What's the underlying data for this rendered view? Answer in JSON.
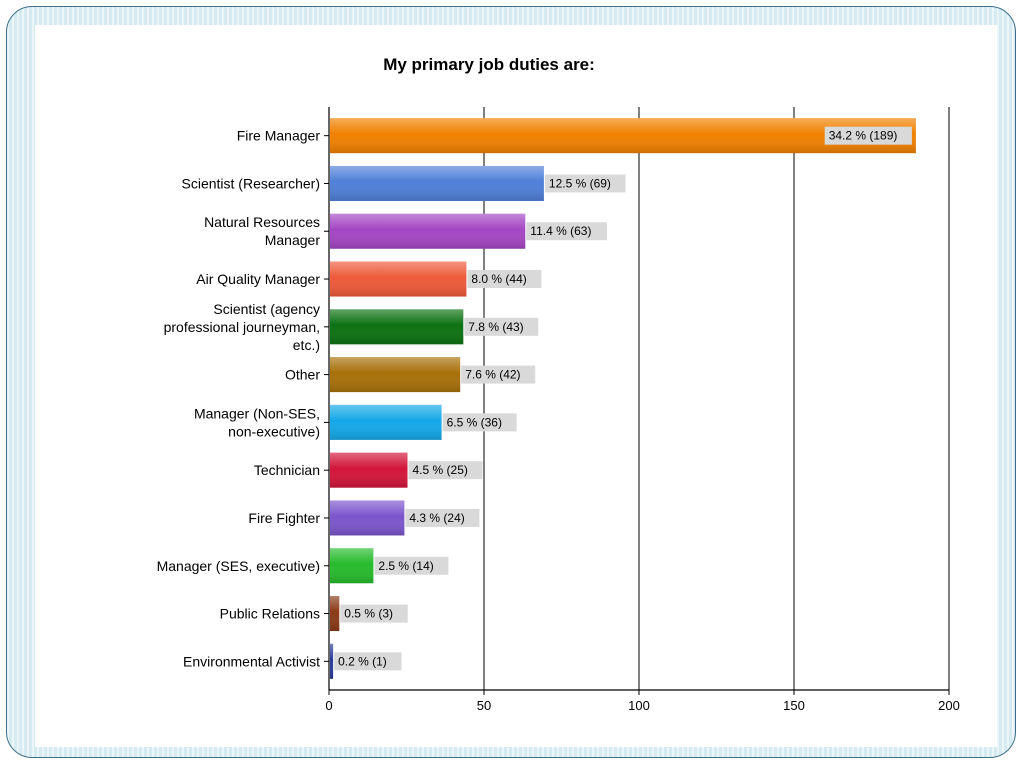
{
  "chart_data": {
    "type": "bar",
    "orientation": "horizontal",
    "title": "My primary job duties are:",
    "xlabel": "",
    "ylabel": "",
    "xlim": [
      0,
      200
    ],
    "xticks": [
      0,
      50,
      100,
      150,
      200
    ],
    "grid": true,
    "bars": [
      {
        "label": "Fire Manager",
        "value": 189,
        "data_label": "34.2 % (189)",
        "color": "#f08000"
      },
      {
        "label": "Scientist (Researcher)",
        "value": 69,
        "data_label": "12.5 % (69)",
        "color": "#4f7fd8"
      },
      {
        "label": "Natural Resources Manager",
        "value": 63,
        "data_label": "11.4 % (63)",
        "color": "#a446c4"
      },
      {
        "label": "Air Quality Manager",
        "value": 44,
        "data_label": "8.0 % (44)",
        "color": "#ef5a3a"
      },
      {
        "label": "Scientist (agency professional journeyman, etc.)",
        "value": 43,
        "data_label": "7.8 % (43)",
        "color": "#0c7212"
      },
      {
        "label": "Other",
        "value": 42,
        "data_label": "7.6 % (42)",
        "color": "#a8700a"
      },
      {
        "label": "Manager (Non-SES, non-executive)",
        "value": 36,
        "data_label": "6.5 % (36)",
        "color": "#14a8e8"
      },
      {
        "label": "Technician",
        "value": 25,
        "data_label": "4.5 % (25)",
        "color": "#d3153a"
      },
      {
        "label": "Fire Fighter",
        "value": 24,
        "data_label": "4.3 % (24)",
        "color": "#7b55cc"
      },
      {
        "label": "Manager (SES, executive)",
        "value": 14,
        "data_label": "2.5 % (14)",
        "color": "#26bb2c"
      },
      {
        "label": "Public Relations",
        "value": 3,
        "data_label": "0.5 % (3)",
        "color": "#8a3a18"
      },
      {
        "label": "Environmental Activist",
        "value": 1,
        "data_label": "0.2 % (1)",
        "color": "#2a3a9a"
      }
    ]
  }
}
